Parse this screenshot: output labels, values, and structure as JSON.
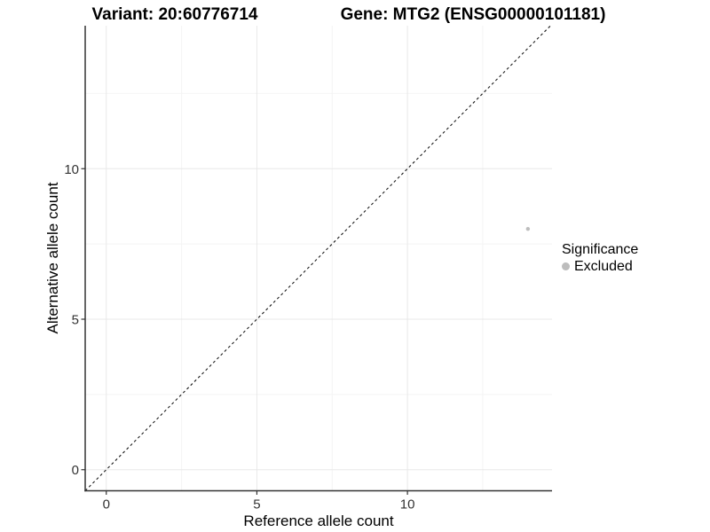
{
  "figure": {
    "title_left": "Variant: 20:60776714",
    "title_right": "Gene: MTG2 (ENSG00000101181)"
  },
  "chart_data": {
    "type": "scatter",
    "xlabel": "Reference allele count",
    "ylabel": "Alternative allele count",
    "xlim": [
      -0.7,
      14.8
    ],
    "ylim": [
      -0.7,
      14.75
    ],
    "x_ticks": [
      0,
      5,
      10
    ],
    "y_ticks": [
      0,
      5,
      10
    ],
    "x_minor_ticks": [
      2.5,
      7.5,
      12.5
    ],
    "y_minor_ticks": [
      2.5,
      7.5,
      12.5
    ],
    "grid": "major-and-minor",
    "points": [
      {
        "x": 14,
        "y": 8,
        "significance": "Excluded"
      }
    ],
    "reference_line": {
      "type": "identity",
      "slope": 1,
      "intercept": 0,
      "style": "dashed"
    },
    "legend": {
      "title": "Significance",
      "position": "right",
      "items": [
        {
          "label": "Excluded",
          "color": "#bdbdbd"
        }
      ]
    }
  },
  "colors": {
    "background": "#ffffff",
    "grid_major": "#e8e8e8",
    "grid_minor": "#f4f4f4",
    "axis_line": "#333333",
    "tick_mark": "#333333",
    "tick_label": "#333333",
    "reference_line": "#1a1a1a",
    "text": "#000000"
  }
}
